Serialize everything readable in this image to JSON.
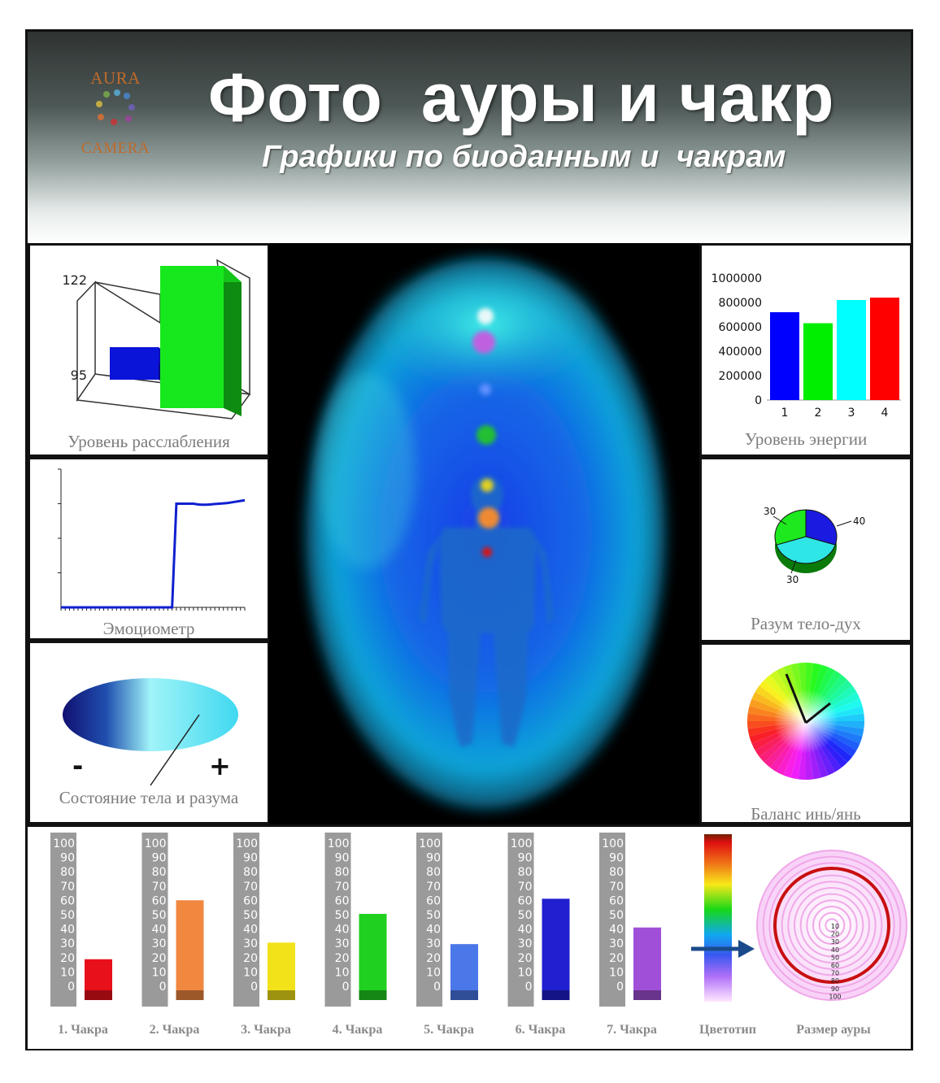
{
  "header": {
    "logo_top": "AURA",
    "logo_bottom": "CAMERA",
    "title": "Фото  ауры и чакр",
    "subtitle": "Графики по биоданным и  чакрам"
  },
  "panels": {
    "relaxation": {
      "caption": "Уровень расслабления",
      "tick_high": "122",
      "tick_low": "95"
    },
    "energy": {
      "caption": "Уровень энергии"
    },
    "emotiometer": {
      "caption": "Эмоциометр"
    },
    "mind_body_spirit": {
      "caption": "Разум тело-дух"
    },
    "body_mind_state": {
      "caption": "Состояние тела и разума",
      "minus": "-",
      "plus": "+"
    },
    "yin_yang": {
      "caption": "Баланс инь/янь"
    }
  },
  "bottom": {
    "colortype_label": "Цветотип",
    "aura_size_label": "Размер ауры"
  },
  "chart_data": [
    {
      "type": "bar",
      "name_ref": "relaxation",
      "categories": [
        "",
        ""
      ],
      "values": [
        104,
        122
      ],
      "yticks": [
        95,
        122
      ],
      "colors": [
        "#0a14d8",
        "#17e81d"
      ]
    },
    {
      "type": "bar",
      "name_ref": "energy",
      "categories": [
        "1",
        "2",
        "3",
        "4"
      ],
      "values": [
        720000,
        630000,
        820000,
        840000
      ],
      "yticks": [
        "0",
        "200000",
        "400000",
        "600000",
        "800000",
        "1000000"
      ],
      "ylim": [
        0,
        1000000
      ],
      "colors": [
        "#0000ff",
        "#00ee00",
        "#00ffff",
        "#ff0000"
      ]
    },
    {
      "type": "line",
      "name_ref": "emotiometer",
      "x": [
        0,
        1,
        2,
        3,
        4,
        5,
        6,
        7,
        8,
        9,
        10,
        11,
        12,
        13,
        14,
        15,
        16,
        17,
        18,
        19,
        20,
        21,
        22,
        23,
        24,
        25,
        26,
        27,
        28,
        29,
        30,
        31,
        32,
        33,
        34,
        35,
        36,
        37,
        38,
        39,
        40,
        41,
        42,
        43
      ],
      "y": [
        0,
        0,
        0,
        0,
        0,
        0,
        0,
        0,
        0,
        0,
        0,
        0,
        0,
        0,
        0,
        0,
        0,
        0,
        0,
        0,
        0,
        0,
        0,
        0,
        0,
        0,
        0,
        3,
        3,
        3,
        3,
        3,
        2.98,
        2.97,
        2.97,
        2.98,
        2.99,
        3,
        3.01,
        3.02,
        3.04,
        3.06,
        3.08,
        3.1
      ],
      "ylim": [
        0,
        4
      ],
      "color": "#1020d0"
    },
    {
      "type": "pie",
      "name_ref": "mind_body_spirit",
      "values": [
        30,
        40,
        30
      ],
      "labels": [
        "30",
        "40",
        "30"
      ],
      "colors": [
        "#1a1ae0",
        "#2fe6e6",
        "#1ee81e"
      ]
    },
    {
      "type": "bar",
      "name_ref": "chakras",
      "categories": [
        "1. Чакра",
        "2. Чакра",
        "3. Чакра",
        "4. Чакра",
        "5. Чакра",
        "6. Чакра",
        "7. Чакра"
      ],
      "values": [
        27,
        66,
        38,
        57,
        37,
        67,
        48
      ],
      "yticks": [
        "100",
        "90",
        "80",
        "70",
        "60",
        "50",
        "40",
        "30",
        "20",
        "10",
        "0"
      ],
      "ylim": [
        0,
        100
      ],
      "colors": [
        "#e8101a",
        "#f08840",
        "#f2e21a",
        "#20d020",
        "#4a78e8",
        "#2020d0",
        "#a050d8"
      ]
    },
    {
      "type": "table",
      "name_ref": "aura_size",
      "labels": [
        "10",
        "20",
        "30",
        "40",
        "50",
        "60",
        "70",
        "80",
        "90",
        "100"
      ]
    }
  ]
}
